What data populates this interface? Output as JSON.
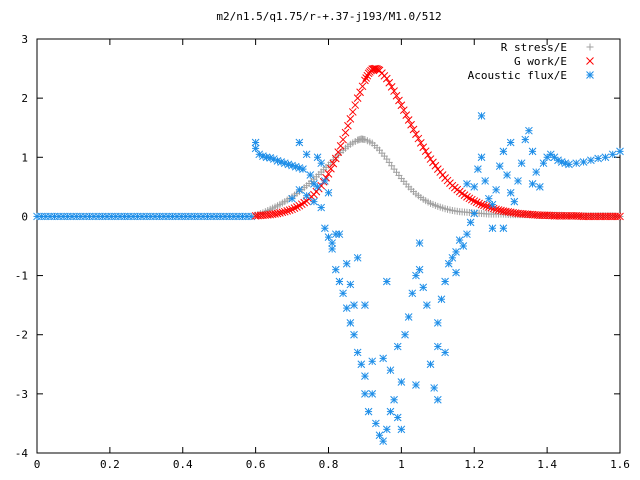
{
  "chart_data": {
    "type": "scatter",
    "title": "m2/n1.5/q1.75/r-+.37-j193/M1.0/512",
    "xlabel": "",
    "ylabel": "",
    "xlim": [
      0,
      1.6
    ],
    "ylim": [
      -4,
      3
    ],
    "xticks": [
      0,
      0.2,
      0.4,
      0.6,
      0.8,
      1,
      1.2,
      1.4,
      1.6
    ],
    "xtick_labels": [
      "0",
      "0.2",
      "0.4",
      "0.6",
      "0.8",
      "1",
      "1.2",
      "1.4",
      "1.6"
    ],
    "yticks": [
      -4,
      -3,
      -2,
      -1,
      0,
      1,
      2,
      3
    ],
    "ytick_labels": [
      "-4",
      "-3",
      "-2",
      "-1",
      "0",
      "1",
      "2",
      "3"
    ],
    "grid": false,
    "legend_position": "top-right",
    "series": [
      {
        "name": "R stress/E",
        "marker": "plus",
        "color": "#a0a0a0",
        "points": [
          [
            0.6,
            0.02
          ],
          [
            0.62,
            0.06
          ],
          [
            0.64,
            0.12
          ],
          [
            0.66,
            0.18
          ],
          [
            0.68,
            0.25
          ],
          [
            0.7,
            0.33
          ],
          [
            0.72,
            0.42
          ],
          [
            0.74,
            0.52
          ],
          [
            0.76,
            0.63
          ],
          [
            0.78,
            0.75
          ],
          [
            0.8,
            0.87
          ],
          [
            0.82,
            1.0
          ],
          [
            0.84,
            1.12
          ],
          [
            0.86,
            1.22
          ],
          [
            0.88,
            1.29
          ],
          [
            0.89,
            1.31
          ],
          [
            0.9,
            1.3
          ],
          [
            0.92,
            1.24
          ],
          [
            0.94,
            1.12
          ],
          [
            0.96,
            0.97
          ],
          [
            0.98,
            0.8
          ],
          [
            1.0,
            0.64
          ],
          [
            1.02,
            0.5
          ],
          [
            1.04,
            0.38
          ],
          [
            1.06,
            0.29
          ],
          [
            1.08,
            0.22
          ],
          [
            1.1,
            0.17
          ],
          [
            1.12,
            0.13
          ],
          [
            1.14,
            0.1
          ],
          [
            1.16,
            0.08
          ],
          [
            1.18,
            0.07
          ],
          [
            1.2,
            0.06
          ],
          [
            1.22,
            0.05
          ],
          [
            1.24,
            0.04
          ],
          [
            1.26,
            0.04
          ],
          [
            1.28,
            0.04
          ],
          [
            1.3,
            0.03
          ],
          [
            1.32,
            0.03
          ],
          [
            1.34,
            0.03
          ],
          [
            1.36,
            0.03
          ],
          [
            1.38,
            0.02
          ],
          [
            1.4,
            0.02
          ],
          [
            1.42,
            0.02
          ],
          [
            1.44,
            0.02
          ],
          [
            1.46,
            0.01
          ],
          [
            1.48,
            0.01
          ],
          [
            1.5,
            0.01
          ],
          [
            1.52,
            0.01
          ],
          [
            1.54,
            0.01
          ],
          [
            1.56,
            0.01
          ],
          [
            1.58,
            0.01
          ],
          [
            1.6,
            0.0
          ]
        ]
      },
      {
        "name": "G work/E",
        "marker": "cross",
        "color": "#ff0000",
        "points": [
          [
            0.6,
            0.01
          ],
          [
            0.62,
            0.02
          ],
          [
            0.64,
            0.03
          ],
          [
            0.66,
            0.05
          ],
          [
            0.68,
            0.08
          ],
          [
            0.7,
            0.12
          ],
          [
            0.72,
            0.18
          ],
          [
            0.74,
            0.26
          ],
          [
            0.76,
            0.37
          ],
          [
            0.78,
            0.52
          ],
          [
            0.8,
            0.72
          ],
          [
            0.82,
            0.98
          ],
          [
            0.84,
            1.3
          ],
          [
            0.86,
            1.65
          ],
          [
            0.88,
            2.0
          ],
          [
            0.9,
            2.3
          ],
          [
            0.91,
            2.42
          ],
          [
            0.92,
            2.49
          ],
          [
            0.93,
            2.5
          ],
          [
            0.94,
            2.47
          ],
          [
            0.96,
            2.33
          ],
          [
            0.98,
            2.12
          ],
          [
            1.0,
            1.88
          ],
          [
            1.02,
            1.63
          ],
          [
            1.04,
            1.39
          ],
          [
            1.06,
            1.17
          ],
          [
            1.08,
            0.97
          ],
          [
            1.1,
            0.8
          ],
          [
            1.12,
            0.65
          ],
          [
            1.14,
            0.52
          ],
          [
            1.16,
            0.42
          ],
          [
            1.18,
            0.33
          ],
          [
            1.2,
            0.26
          ],
          [
            1.22,
            0.2
          ],
          [
            1.24,
            0.16
          ],
          [
            1.26,
            0.12
          ],
          [
            1.28,
            0.09
          ],
          [
            1.3,
            0.07
          ],
          [
            1.32,
            0.05
          ],
          [
            1.34,
            0.04
          ],
          [
            1.36,
            0.03
          ],
          [
            1.38,
            0.02
          ],
          [
            1.4,
            0.02
          ],
          [
            1.42,
            0.01
          ],
          [
            1.44,
            0.01
          ],
          [
            1.46,
            0.01
          ],
          [
            1.48,
            0.01
          ],
          [
            1.5,
            0.0
          ],
          [
            1.52,
            0.0
          ],
          [
            1.54,
            0.0
          ],
          [
            1.56,
            0.0
          ],
          [
            1.58,
            0.0
          ],
          [
            1.6,
            0.0
          ]
        ]
      },
      {
        "name": "Acoustic flux/E",
        "marker": "star",
        "color": "#1e8ee8",
        "points": [
          [
            0.6,
            1.25
          ],
          [
            0.6,
            1.15
          ],
          [
            0.61,
            1.05
          ],
          [
            0.62,
            1.02
          ],
          [
            0.63,
            1.0
          ],
          [
            0.64,
            0.99
          ],
          [
            0.65,
            0.97
          ],
          [
            0.66,
            0.94
          ],
          [
            0.67,
            0.92
          ],
          [
            0.68,
            0.9
          ],
          [
            0.69,
            0.88
          ],
          [
            0.7,
            0.86
          ],
          [
            0.71,
            0.84
          ],
          [
            0.72,
            0.82
          ],
          [
            0.73,
            0.8
          ],
          [
            0.72,
            1.25
          ],
          [
            0.74,
            1.05
          ],
          [
            0.75,
            0.7
          ],
          [
            0.76,
            0.55
          ],
          [
            0.77,
            0.5
          ],
          [
            0.78,
            0.9
          ],
          [
            0.72,
            0.45
          ],
          [
            0.74,
            0.35
          ],
          [
            0.7,
            0.3
          ],
          [
            0.76,
            0.25
          ],
          [
            0.78,
            0.15
          ],
          [
            0.77,
            1.0
          ],
          [
            0.79,
            0.6
          ],
          [
            0.8,
            0.4
          ],
          [
            0.79,
            -0.2
          ],
          [
            0.8,
            -0.35
          ],
          [
            0.81,
            -0.45
          ],
          [
            0.82,
            -0.3
          ],
          [
            0.81,
            -0.55
          ],
          [
            0.82,
            -0.9
          ],
          [
            0.83,
            -1.1
          ],
          [
            0.84,
            -1.3
          ],
          [
            0.85,
            -0.8
          ],
          [
            0.86,
            -1.15
          ],
          [
            0.87,
            -1.5
          ],
          [
            0.86,
            -1.8
          ],
          [
            0.85,
            -1.55
          ],
          [
            0.87,
            -2.0
          ],
          [
            0.88,
            -2.3
          ],
          [
            0.89,
            -2.5
          ],
          [
            0.9,
            -2.7
          ],
          [
            0.9,
            -3.0
          ],
          [
            0.91,
            -3.3
          ],
          [
            0.92,
            -3.0
          ],
          [
            0.93,
            -3.5
          ],
          [
            0.94,
            -3.7
          ],
          [
            0.95,
            -3.8
          ],
          [
            0.96,
            -3.6
          ],
          [
            0.97,
            -3.3
          ],
          [
            0.98,
            -3.1
          ],
          [
            0.99,
            -3.4
          ],
          [
            1.0,
            -3.6
          ],
          [
            1.0,
            -2.8
          ],
          [
            0.95,
            -2.4
          ],
          [
            0.97,
            -2.6
          ],
          [
            0.99,
            -2.2
          ],
          [
            1.01,
            -2.0
          ],
          [
            1.02,
            -1.7
          ],
          [
            1.03,
            -1.3
          ],
          [
            1.04,
            -1.0
          ],
          [
            1.05,
            -0.9
          ],
          [
            1.06,
            -1.2
          ],
          [
            1.07,
            -1.5
          ],
          [
            1.08,
            -2.5
          ],
          [
            1.09,
            -2.9
          ],
          [
            1.1,
            -2.2
          ],
          [
            1.1,
            -1.8
          ],
          [
            1.11,
            -1.4
          ],
          [
            1.12,
            -1.1
          ],
          [
            1.13,
            -0.8
          ],
          [
            1.14,
            -0.7
          ],
          [
            1.15,
            -0.6
          ],
          [
            1.16,
            -0.4
          ],
          [
            1.17,
            -0.5
          ],
          [
            1.18,
            -0.3
          ],
          [
            1.19,
            -0.1
          ],
          [
            1.2,
            0.05
          ],
          [
            1.2,
            0.5
          ],
          [
            1.21,
            0.8
          ],
          [
            1.22,
            1.0
          ],
          [
            1.23,
            0.6
          ],
          [
            1.24,
            0.3
          ],
          [
            1.25,
            0.2
          ],
          [
            1.26,
            0.45
          ],
          [
            1.27,
            0.85
          ],
          [
            1.28,
            1.1
          ],
          [
            1.29,
            0.7
          ],
          [
            1.3,
            0.4
          ],
          [
            1.31,
            0.25
          ],
          [
            1.32,
            0.6
          ],
          [
            1.33,
            0.9
          ],
          [
            1.34,
            1.3
          ],
          [
            1.35,
            1.45
          ],
          [
            1.36,
            1.1
          ],
          [
            1.37,
            0.75
          ],
          [
            1.38,
            0.5
          ],
          [
            1.39,
            0.9
          ],
          [
            1.4,
            1.0
          ],
          [
            1.41,
            1.05
          ],
          [
            1.42,
            1.0
          ],
          [
            1.43,
            0.95
          ],
          [
            1.44,
            0.92
          ],
          [
            1.45,
            0.9
          ],
          [
            1.46,
            0.88
          ],
          [
            1.48,
            0.9
          ],
          [
            1.5,
            0.92
          ],
          [
            1.52,
            0.95
          ],
          [
            1.54,
            0.98
          ],
          [
            1.56,
            1.0
          ],
          [
            1.58,
            1.05
          ],
          [
            1.6,
            1.1
          ],
          [
            1.1,
            -3.1
          ],
          [
            0.96,
            -1.1
          ],
          [
            0.92,
            -2.45
          ],
          [
            1.04,
            -2.85
          ],
          [
            0.9,
            -1.5
          ],
          [
            1.15,
            -0.95
          ],
          [
            1.22,
            1.7
          ],
          [
            1.3,
            1.25
          ],
          [
            1.36,
            0.55
          ],
          [
            1.28,
            -0.2
          ],
          [
            1.12,
            -2.3
          ],
          [
            0.83,
            -0.3
          ],
          [
            0.88,
            -0.7
          ],
          [
            1.05,
            -0.45
          ],
          [
            1.25,
            -0.2
          ],
          [
            1.18,
            0.55
          ]
        ]
      }
    ]
  }
}
